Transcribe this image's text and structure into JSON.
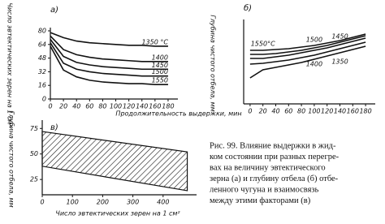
{
  "chart_data": [
    {
      "type": "line",
      "title": "а)",
      "ylabel": "Число эвтектических зерен на 1 см²",
      "xlabel": "Продолжительность выдержки, мин",
      "x": [
        0,
        20,
        40,
        60,
        80,
        100,
        120,
        140,
        160,
        180
      ],
      "xlim": [
        0,
        190
      ],
      "xticks": [
        0,
        20,
        40,
        60,
        80,
        100,
        120,
        140,
        160,
        180
      ],
      "ylim": [
        0,
        80
      ],
      "yticks": [
        0,
        16,
        32,
        48,
        64,
        80
      ],
      "series": [
        {
          "name": "1350 °C",
          "color": "#111111",
          "values": [
            78,
            72,
            68,
            66,
            65,
            64,
            63,
            63,
            62,
            62
          ]
        },
        {
          "name": "1400",
          "color": "#111111",
          "values": [
            74,
            58,
            52,
            49,
            47,
            46,
            45,
            44,
            44,
            44
          ]
        },
        {
          "name": "1450",
          "color": "#111111",
          "values": [
            70,
            50,
            43,
            40,
            38,
            37,
            36,
            35,
            35,
            35
          ]
        },
        {
          "name": "1500",
          "color": "#111111",
          "values": [
            66,
            42,
            35,
            32,
            30,
            29,
            28,
            27,
            27,
            27
          ]
        },
        {
          "name": "1550",
          "color": "#111111",
          "values": [
            62,
            34,
            26,
            22,
            20,
            19,
            18,
            18,
            17,
            17
          ]
        }
      ]
    },
    {
      "type": "line",
      "title": "б)",
      "ylabel": "Глубина чистого отбела, мм",
      "x": [
        0,
        20,
        40,
        60,
        80,
        100,
        120,
        140,
        160,
        180
      ],
      "xlim": [
        -10,
        190
      ],
      "xticks": [
        0,
        20,
        40,
        60,
        80,
        100,
        120,
        140,
        160,
        180
      ],
      "ylim": [
        0,
        10
      ],
      "series": [
        {
          "name": "1550°C",
          "color": "#111111",
          "values": [
            6.6,
            6.6,
            6.7,
            6.8,
            7.0,
            7.2,
            7.5,
            7.8,
            8.2,
            8.6
          ]
        },
        {
          "name": "1500",
          "color": "#111111",
          "values": [
            6.1,
            6.1,
            6.2,
            6.4,
            6.6,
            6.9,
            7.2,
            7.6,
            8.0,
            8.4
          ]
        },
        {
          "name": "1450",
          "color": "#111111",
          "values": [
            5.6,
            5.6,
            5.8,
            6.0,
            6.3,
            6.6,
            6.9,
            7.3,
            7.7,
            8.1
          ]
        },
        {
          "name": "1400",
          "color": "#111111",
          "values": [
            4.9,
            5.0,
            5.2,
            5.4,
            5.7,
            6.0,
            6.4,
            6.8,
            7.2,
            7.6
          ]
        },
        {
          "name": "1350",
          "color": "#111111",
          "values": [
            3.2,
            4.2,
            4.5,
            4.8,
            5.1,
            5.5,
            5.9,
            6.3,
            6.7,
            7.1
          ]
        }
      ]
    },
    {
      "type": "band",
      "title": "в)",
      "ylabel": "Глубина чистого отбела, мм",
      "xlabel": "Число эвтектических зерен на 1 см²",
      "x": [
        0,
        480
      ],
      "xlim": [
        0,
        500
      ],
      "xticks": [
        0,
        100,
        200,
        300,
        400
      ],
      "ylim": [
        10,
        80
      ],
      "yticks": [
        25,
        50,
        75
      ],
      "upper": [
        72,
        52
      ],
      "lower": [
        38,
        14
      ]
    }
  ],
  "caption": [
    "Рис. 99. Влияние выдержки в жид-",
    "ком состоянии при разных перегре-",
    "вах на величину эвтектического",
    "зерна (а) и глубину отбела (б) отбе-",
    "ленного чугуна и взаимосвязь",
    "между этими факторами (в)"
  ]
}
